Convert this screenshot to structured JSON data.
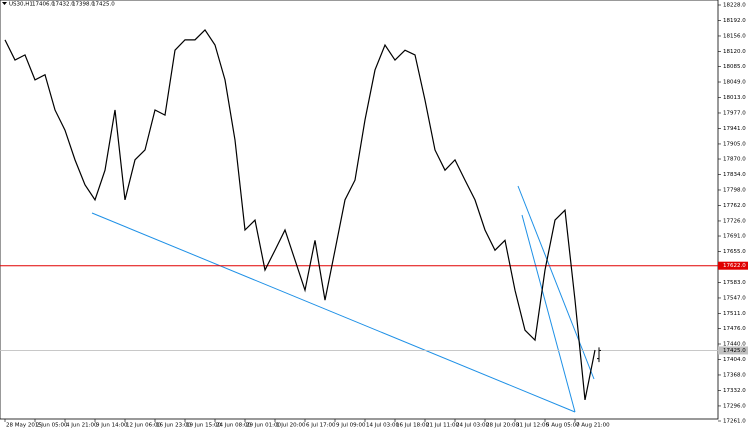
{
  "chart_data": {
    "type": "line",
    "title": "US30,H1",
    "last_bar": [
      {
        "value": 17406,
        "label": "17406.0"
      },
      {
        "value": 17432,
        "label": "17432.0"
      },
      {
        "value": 17398,
        "label": "17398.0"
      },
      {
        "value": 17425,
        "label": "17425.0"
      }
    ],
    "categories": [
      "28 May 2015",
      null,
      null,
      "2 Jun 05:00",
      null,
      null,
      "4 Jun 21:00",
      null,
      null,
      "9 Jun 14:00",
      null,
      null,
      "12 Jun 06:00",
      null,
      null,
      "16 Jun 23:00",
      null,
      null,
      "19 Jun 15:00",
      null,
      null,
      "24 Jun 08:00",
      null,
      null,
      "29 Jun 01:00",
      null,
      null,
      "1 Jul 20:00",
      null,
      null,
      "6 Jul 17:00",
      null,
      null,
      "9 Jul 09:00",
      null,
      null,
      "14 Jul 03:00",
      null,
      null,
      "16 Jul 18:00",
      null,
      null,
      "21 Jul 11:00",
      null,
      null,
      "24 Jul 03:00",
      null,
      null,
      "28 Jul 20:00",
      null,
      null,
      "31 Jul 12:00",
      null,
      null,
      "5 Aug 05:00",
      null,
      null,
      "7 Aug 21:00",
      null,
      null
    ],
    "series": [
      {
        "color": "#000000",
        "values": [
          18147,
          18100,
          18112,
          18054,
          18066,
          17984,
          17937,
          17868,
          17810,
          17775,
          17844,
          17984,
          17775,
          17868,
          17891,
          17984,
          17972,
          18123,
          18147,
          18147,
          18170,
          18135,
          18054,
          17914,
          17705,
          17728,
          17612,
          17658,
          17705,
          17635,
          17565,
          17681,
          17542,
          17658,
          17775,
          17821,
          17961,
          18077,
          18135,
          18100,
          18123,
          18112,
          18007,
          17891,
          17844,
          17868,
          17821,
          17775,
          17705,
          17658,
          17681,
          17565,
          17472,
          17449,
          17612,
          17728,
          17751,
          17542,
          17310,
          17426
        ]
      }
    ],
    "levels": [
      {
        "value": 17622,
        "label": "17622.0",
        "color": "#e00000"
      }
    ],
    "ylim": [
      17261,
      18228
    ],
    "yticks": [
      {
        "value": 18228,
        "label": "18228.0"
      },
      {
        "value": 18192,
        "label": "18192.0"
      },
      {
        "value": 18156,
        "label": "18156.0"
      },
      {
        "value": 18120,
        "label": "18120.0"
      },
      {
        "value": 18085,
        "label": "18085.0"
      },
      {
        "value": 18049,
        "label": "18049.0"
      },
      {
        "value": 18013,
        "label": "18013.0"
      },
      {
        "value": 17977,
        "label": "17977.0"
      },
      {
        "value": 17941,
        "label": "17941.0"
      },
      {
        "value": 17905,
        "label": "17905.0"
      },
      {
        "value": 17870,
        "label": "17870.0"
      },
      {
        "value": 17834,
        "label": "17834.0"
      },
      {
        "value": 17798,
        "label": "17798.0"
      },
      {
        "value": 17762,
        "label": "17762.0"
      },
      {
        "value": 17726,
        "label": "17726.0"
      },
      {
        "value": 17691,
        "label": "17691.0"
      },
      {
        "value": 17655,
        "label": "17655.0"
      },
      {
        "value": 17619,
        "label": "17619.0"
      },
      {
        "value": 17583,
        "label": "17583.0"
      },
      {
        "value": 17547,
        "label": "17547.0"
      },
      {
        "value": 17511,
        "label": "17511.0"
      },
      {
        "value": 17476,
        "label": "17476.0"
      },
      {
        "value": 17440,
        "label": "17440.0"
      },
      {
        "value": 17404,
        "label": "17404.0"
      },
      {
        "value": 17368,
        "label": "17368.0"
      },
      {
        "value": 17332,
        "label": "17332.0"
      },
      {
        "value": 17296,
        "label": "17296.0"
      },
      {
        "value": 17261,
        "label": "17261.0"
      }
    ]
  }
}
